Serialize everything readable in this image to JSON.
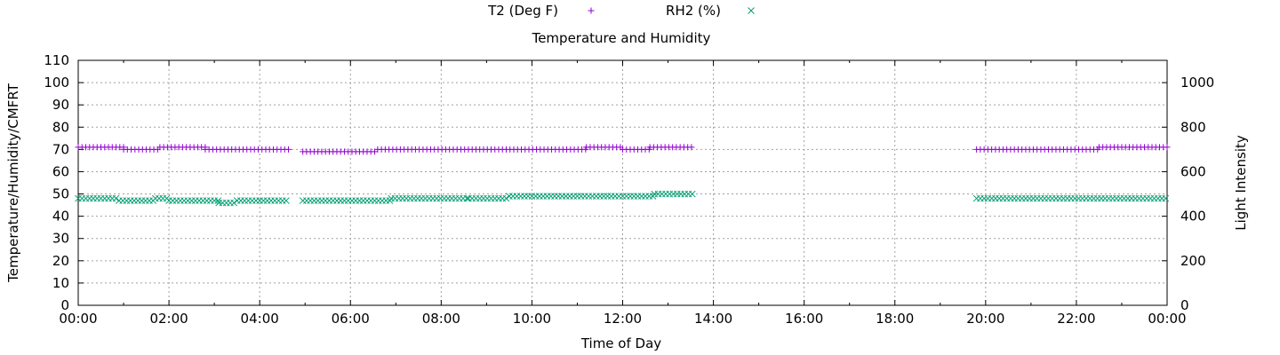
{
  "chart_data": {
    "type": "scatter",
    "title": "Temperature and Humidity",
    "xlabel": "Time of Day",
    "ylabel": "Temperature/Humidity/CMFRT",
    "y2label": "Light Intensity",
    "xlim": [
      0,
      24
    ],
    "ylim": [
      0,
      110
    ],
    "y2lim": [
      0,
      1100
    ],
    "x_ticks": [
      "00:00",
      "02:00",
      "04:00",
      "06:00",
      "08:00",
      "10:00",
      "12:00",
      "14:00",
      "16:00",
      "18:00",
      "20:00",
      "22:00",
      "00:00"
    ],
    "y_ticks": [
      0,
      10,
      20,
      30,
      40,
      50,
      60,
      70,
      80,
      90,
      100,
      110
    ],
    "y2_ticks": [
      0,
      200,
      400,
      600,
      800,
      1000
    ],
    "grid": true,
    "legend_position": "top",
    "series": [
      {
        "name": "T2 (Deg F)",
        "marker": "plus",
        "color": "#9400d3",
        "segments": [
          {
            "x_start": 0.0,
            "x_end": 1.0,
            "y": 71
          },
          {
            "x_start": 1.0,
            "x_end": 1.8,
            "y": 70
          },
          {
            "x_start": 1.8,
            "x_end": 2.8,
            "y": 71
          },
          {
            "x_start": 2.8,
            "x_end": 4.65,
            "y": 70
          },
          {
            "x_start": 4.95,
            "x_end": 6.6,
            "y": 69
          },
          {
            "x_start": 6.6,
            "x_end": 11.2,
            "y": 70
          },
          {
            "x_start": 11.2,
            "x_end": 12.0,
            "y": 71
          },
          {
            "x_start": 12.0,
            "x_end": 12.6,
            "y": 70
          },
          {
            "x_start": 12.6,
            "x_end": 13.55,
            "y": 71
          },
          {
            "x_start": 19.8,
            "x_end": 22.5,
            "y": 70
          },
          {
            "x_start": 22.5,
            "x_end": 24.0,
            "y": 71
          }
        ]
      },
      {
        "name": "RH2 (%)",
        "marker": "cross",
        "color": "#009e73",
        "segments": [
          {
            "x_start": 0.0,
            "x_end": 0.9,
            "y": 48
          },
          {
            "x_start": 0.9,
            "x_end": 1.7,
            "y": 47
          },
          {
            "x_start": 1.7,
            "x_end": 2.0,
            "y": 48
          },
          {
            "x_start": 2.0,
            "x_end": 3.1,
            "y": 47
          },
          {
            "x_start": 3.1,
            "x_end": 3.5,
            "y": 46
          },
          {
            "x_start": 3.5,
            "x_end": 4.65,
            "y": 47
          },
          {
            "x_start": 4.95,
            "x_end": 6.9,
            "y": 47
          },
          {
            "x_start": 6.9,
            "x_end": 8.6,
            "y": 48
          },
          {
            "x_start": 8.6,
            "x_end": 9.5,
            "y": 48
          },
          {
            "x_start": 9.5,
            "x_end": 12.7,
            "y": 49
          },
          {
            "x_start": 12.7,
            "x_end": 13.55,
            "y": 50
          },
          {
            "x_start": 19.8,
            "x_end": 24.0,
            "y": 48
          }
        ]
      }
    ]
  }
}
